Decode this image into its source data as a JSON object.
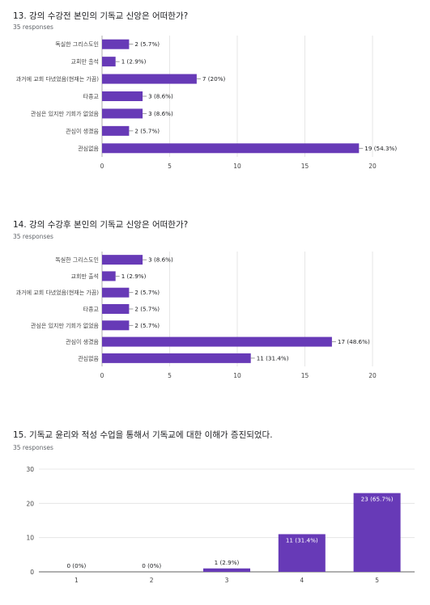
{
  "chart_data": [
    {
      "type": "bar",
      "orientation": "horizontal",
      "title": "13. 강의 수강전 본인의 기독교 신앙은 어떠한가?",
      "subtitle": "35 responses",
      "categories": [
        "독실한 그리스도인",
        "교회만 출석",
        "과거에 교회 다녔었음(현재는 가끔)",
        "타종교",
        "관심은 있지만 기회가 없었음",
        "관심이 생겼음",
        "관심없음"
      ],
      "values": [
        2,
        1,
        7,
        3,
        3,
        2,
        19
      ],
      "labels": [
        "2 (5.7%)",
        "1 (2.9%)",
        "7 (20%)",
        "3 (8.6%)",
        "3 (8.6%)",
        "2 (5.7%)",
        "19 (54.3%)"
      ],
      "xlim": [
        0,
        20
      ],
      "ticks": [
        0,
        5,
        10,
        15,
        20
      ],
      "grid": true,
      "color": "#673ab7"
    },
    {
      "type": "bar",
      "orientation": "horizontal",
      "title": "14. 강의 수강후 본인의 기독교 신앙은 어떠한가?",
      "subtitle": "35 responses",
      "categories": [
        "독실한 그리스도인",
        "교회만 출석",
        "과거에 교회 다녔었음(현재는 가끔)",
        "타종교",
        "관심은 있지만 기회가 없었음",
        "관심이 생겼음",
        "관심없음"
      ],
      "values": [
        3,
        1,
        2,
        2,
        2,
        17,
        11
      ],
      "labels": [
        "3 (8.6%)",
        "1 (2.9%)",
        "2 (5.7%)",
        "2 (5.7%)",
        "2 (5.7%)",
        "17 (48.6%)",
        "11 (31.4%)"
      ],
      "xlim": [
        0,
        20
      ],
      "ticks": [
        0,
        5,
        10,
        15,
        20
      ],
      "grid": true,
      "color": "#673ab7"
    },
    {
      "type": "bar",
      "orientation": "vertical",
      "title": "15. 기독교 윤리와 적성 수업을 통해서 기독교에 대한 이해가 증진되었다.",
      "subtitle": "35 responses",
      "categories": [
        "1",
        "2",
        "3",
        "4",
        "5"
      ],
      "values": [
        0,
        0,
        1,
        11,
        23
      ],
      "labels": [
        "0 (0%)",
        "0 (0%)",
        "1 (2.9%)",
        "11 (31.4%)",
        "23 (65.7%)"
      ],
      "ylim": [
        0,
        30
      ],
      "ticks": [
        0,
        10,
        20,
        30
      ],
      "grid": true,
      "color": "#673ab7"
    }
  ]
}
